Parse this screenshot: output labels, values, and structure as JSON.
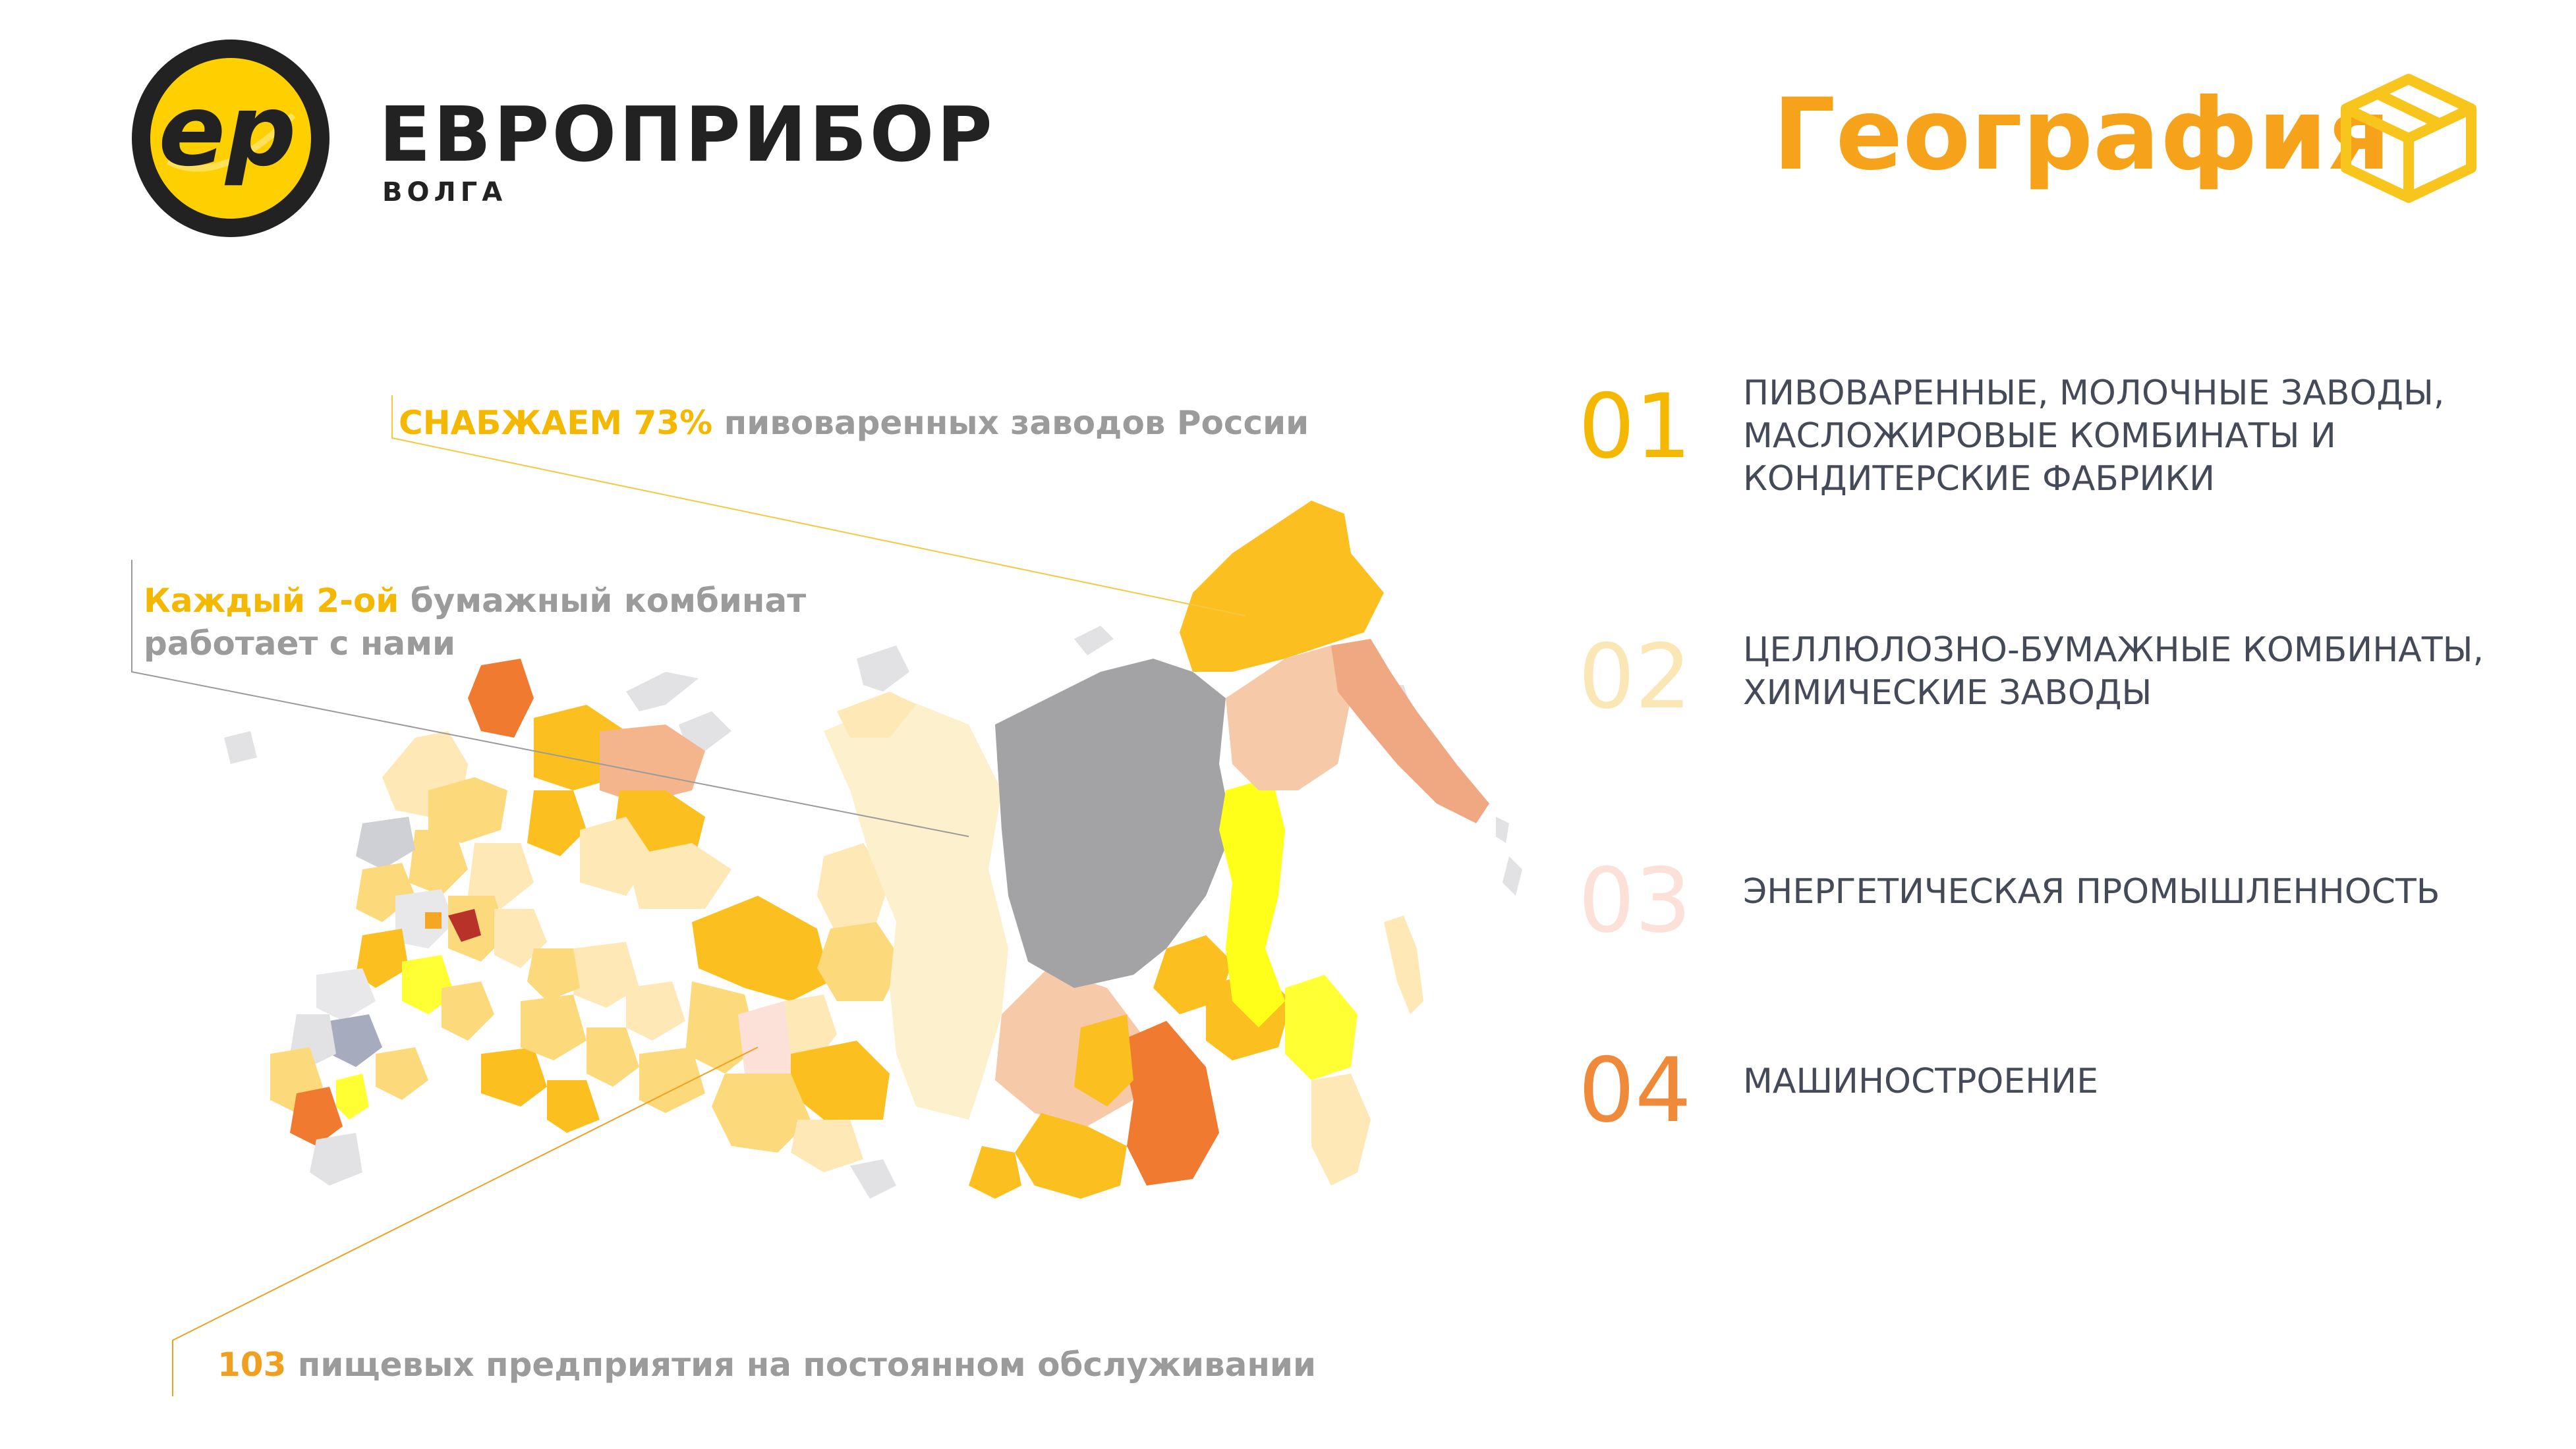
{
  "brand": {
    "logo_text": "ep",
    "name": "ЕВРОПРИБОР",
    "sub": "ВОЛГА"
  },
  "header": {
    "title": "География",
    "icon": "box-icon"
  },
  "callouts": [
    {
      "highlight": "СНАБЖАЕМ 73%",
      "text": " пивоваренных заводов России"
    },
    {
      "highlight": "Каждый 2-ой",
      "text": " бумажный комбинат",
      "text2": "работает с нами"
    },
    {
      "highlight": "103",
      "text": " пищевых предприятия на постоянном обслуживании"
    }
  ],
  "industries": [
    {
      "num": "01",
      "lines": [
        "ПИВОВАРЕННЫЕ, МОЛОЧНЫЕ ЗАВОДЫ,",
        "МАСЛОЖИРОВЫЕ КОМБИНАТЫ И",
        "КОНДИТЕРСКИЕ ФАБРИКИ"
      ]
    },
    {
      "num": "02",
      "lines": [
        "ЦЕЛЛЮЛОЗНО-БУМАЖНЫЕ КОМБИНАТЫ,",
        "ХИМИЧЕСКИЕ ЗАВОДЫ"
      ]
    },
    {
      "num": "03",
      "lines": [
        "ЭНЕРГЕТИЧЕСКАЯ ПРОМЫШЛЕННОСТЬ"
      ]
    },
    {
      "num": "04",
      "lines": [
        "МАШИНОСТРОЕНИЕ"
      ]
    }
  ],
  "colors": {
    "accent": "#f7a21b",
    "yellow": "#f5b800",
    "bright_yellow": "#ffff00",
    "orange": "#ef7a30",
    "peach": "#f4b48c",
    "gray": "#a3a3a5"
  }
}
